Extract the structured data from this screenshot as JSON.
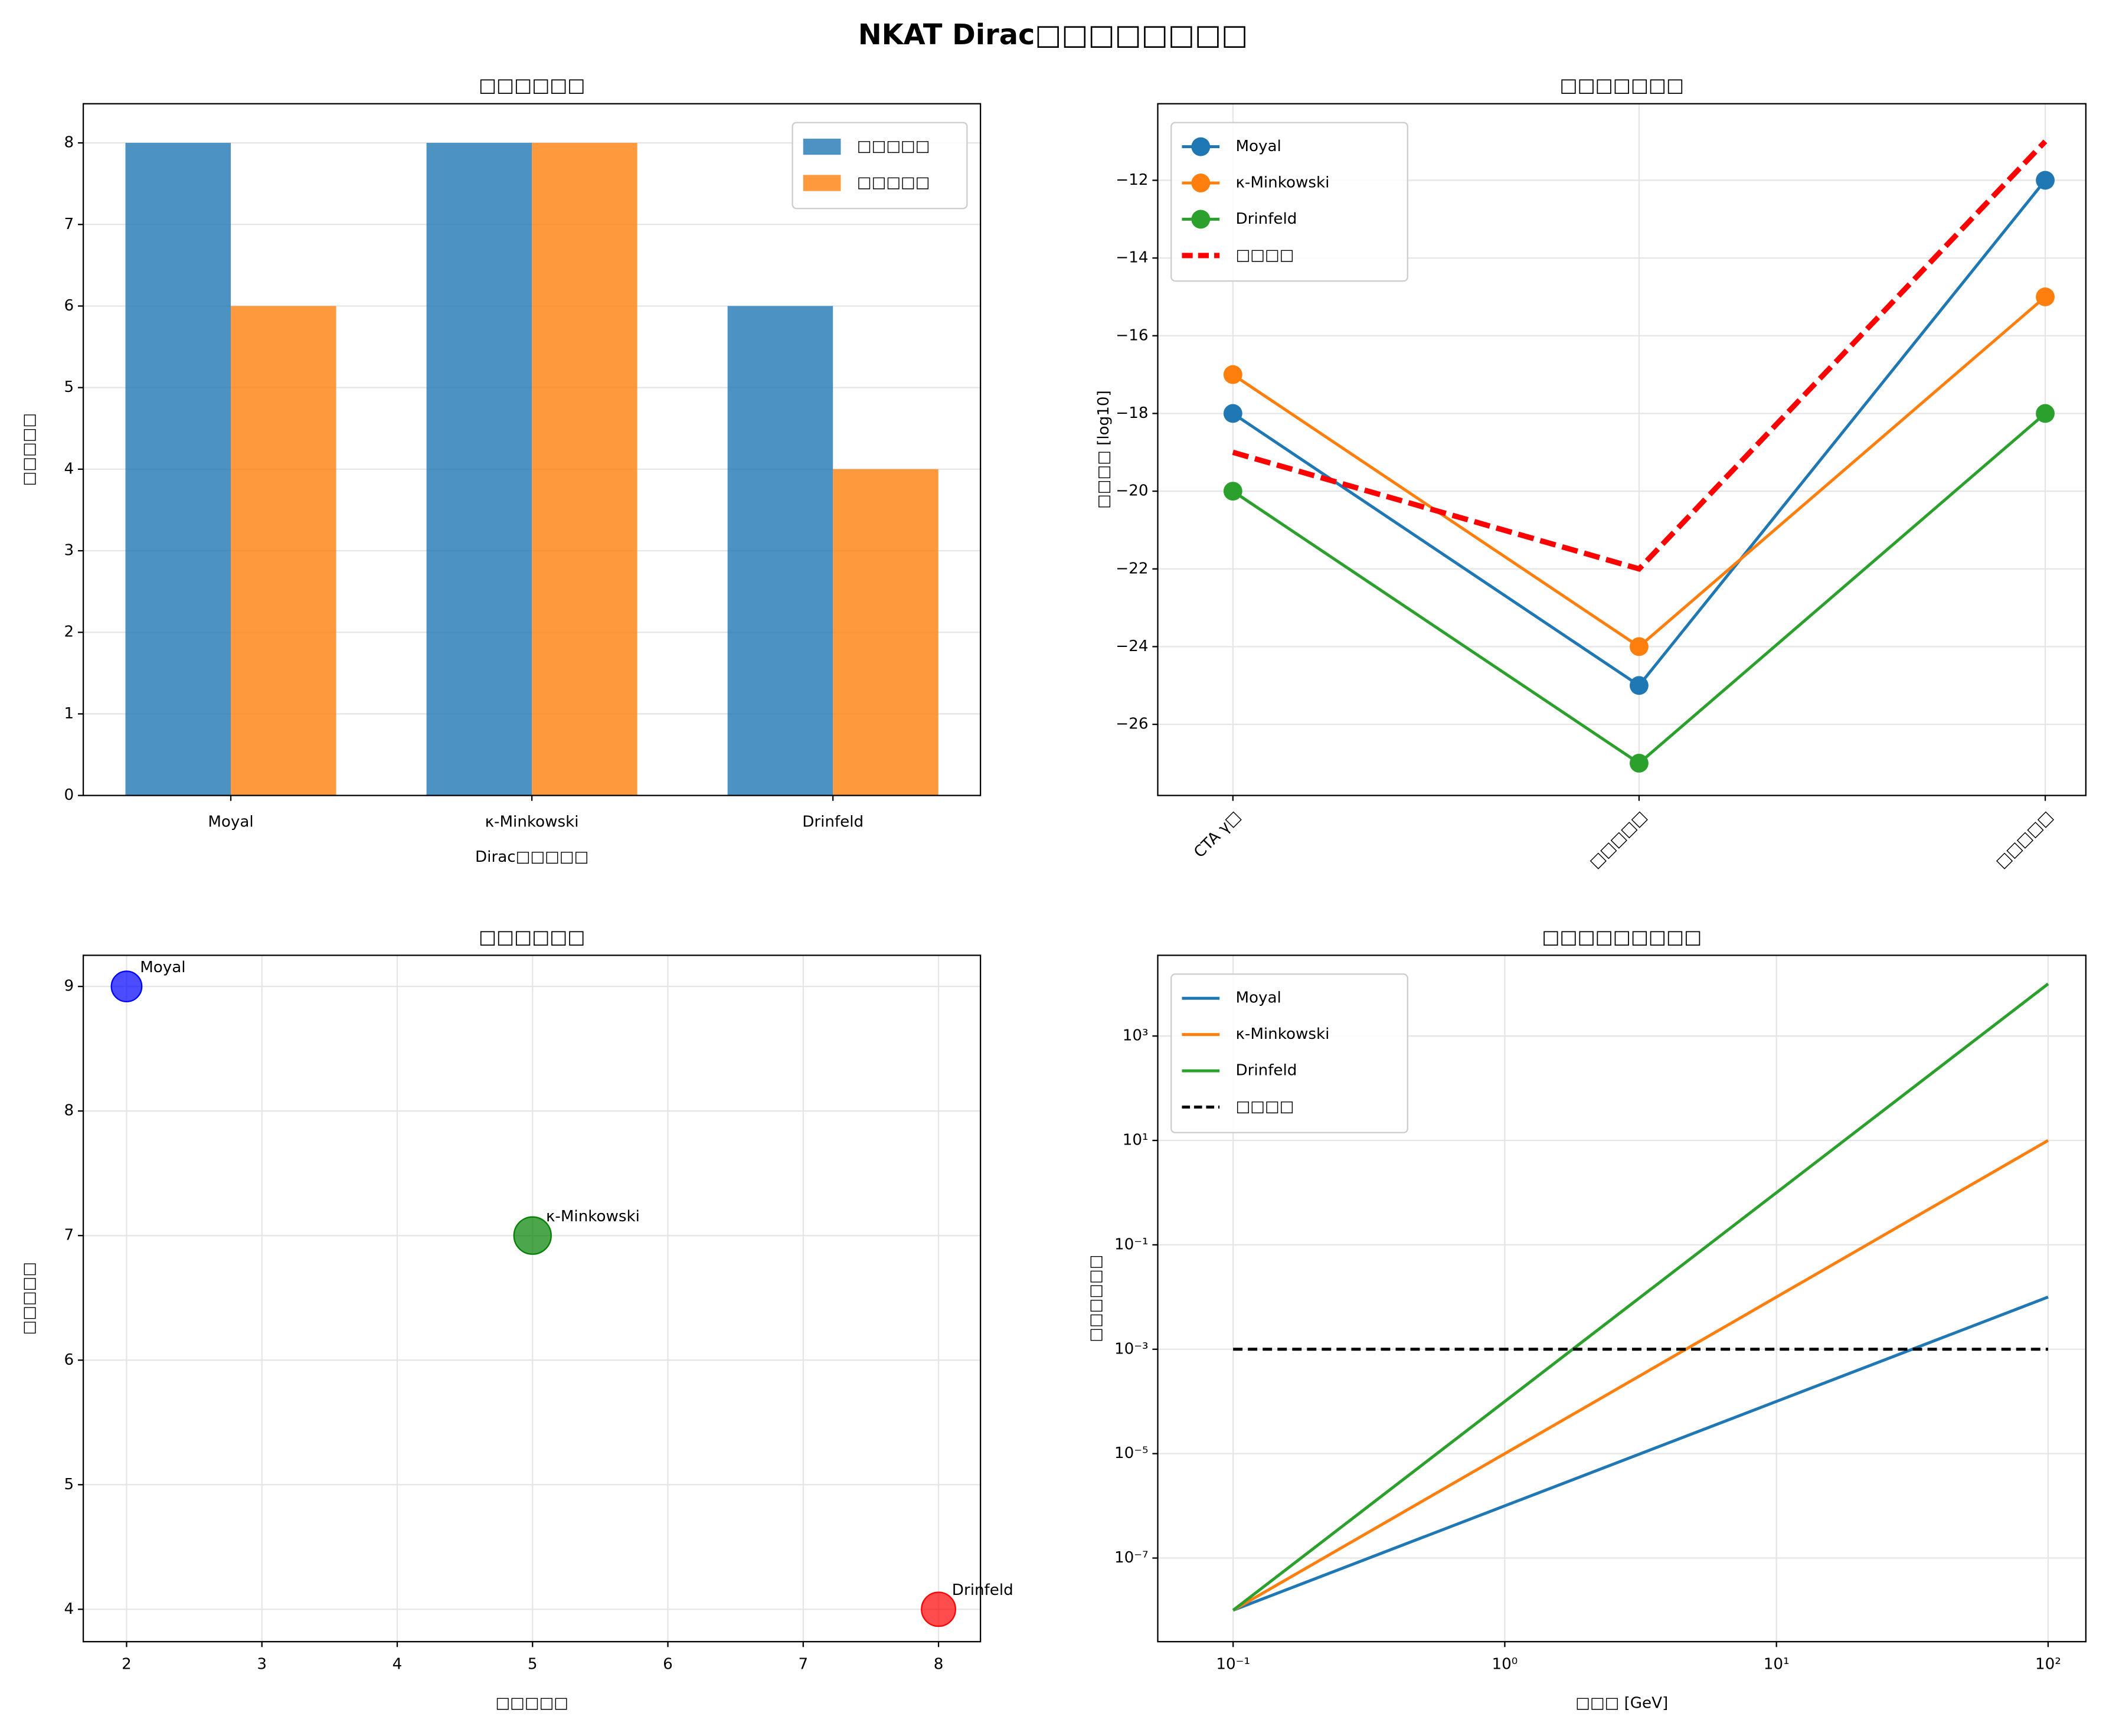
{
  "title": "NKAT Dirac□□□□□□□□",
  "chart_data": [
    {
      "type": "bar",
      "title": "□□□□□□",
      "xlabel": "Dirac□□□□□",
      "ylabel": "□□□□□",
      "categories": [
        "Moyal",
        "κ-Minkowski",
        "Drinfeld"
      ],
      "series": [
        {
          "name": "□□□□□",
          "color": "#1f77b4",
          "values": [
            8,
            8,
            6
          ]
        },
        {
          "name": "□□□□□",
          "color": "#ff7f0e",
          "values": [
            6,
            8,
            4
          ]
        }
      ],
      "ylim": [
        0,
        8.48
      ],
      "yticks": [
        0,
        1,
        2,
        3,
        4,
        5,
        6,
        7,
        8
      ],
      "grid": true,
      "legend": "upper right"
    },
    {
      "type": "line",
      "title": "□□□□□□□",
      "ylabel": "□□□□ [log10]",
      "categories": [
        "CTA γ□",
        "□□□□□",
        "□□□□□"
      ],
      "series": [
        {
          "name": "Moyal",
          "color": "#1f77b4",
          "marker": "o",
          "values": [
            -18,
            -25,
            -12
          ]
        },
        {
          "name": "κ-Minkowski",
          "color": "#ff7f0e",
          "marker": "o",
          "values": [
            -17,
            -24,
            -15
          ]
        },
        {
          "name": "Drinfeld",
          "color": "#2ca02c",
          "marker": "o",
          "values": [
            -20,
            -27,
            -18
          ]
        },
        {
          "name": "□□□□",
          "color": "#ff0000",
          "linestyle": "dashed",
          "values": [
            -19,
            -22,
            -11
          ]
        }
      ],
      "ylim": [
        -27.83,
        -10.03
      ],
      "yticks": [
        {
          "value": -26,
          "label": "−26"
        },
        {
          "value": -24,
          "label": "−24"
        },
        {
          "value": -22,
          "label": "−22"
        },
        {
          "value": -20,
          "label": "−20"
        },
        {
          "value": -18,
          "label": "−18"
        },
        {
          "value": -16,
          "label": "−16"
        },
        {
          "value": -14,
          "label": "−14"
        },
        {
          "value": -12,
          "label": "−12"
        }
      ],
      "grid": true,
      "legend": "upper left"
    },
    {
      "type": "scatter",
      "title": "□□□□□□",
      "xlabel": "□□□□□",
      "ylabel": "□□□□□",
      "x": [
        2,
        5,
        8
      ],
      "values": [
        9,
        7,
        4
      ],
      "sizes": [
        200,
        300,
        250
      ],
      "labels": [
        "Moyal",
        "κ-Minkowski",
        "Drinfeld"
      ],
      "colors": [
        "#0000ff",
        "#008000",
        "#ff0000"
      ],
      "xlim": [
        1.68,
        8.31
      ],
      "xticks": [
        2,
        3,
        4,
        5,
        6,
        7,
        8
      ],
      "ylim": [
        3.74,
        9.25
      ],
      "yticks": [
        4,
        5,
        6,
        7,
        8,
        9
      ],
      "grid": true
    },
    {
      "type": "line",
      "title": "□□□□□□□□□",
      "xlabel": "□□□ [GeV]",
      "ylabel": "□□□□□□",
      "x": [
        0.1,
        1,
        10,
        100
      ],
      "xscale": "log",
      "yscale": "log",
      "series": [
        {
          "name": "Moyal",
          "color": "#1f77b4",
          "values": [
            1e-08,
            1e-06,
            0.0001,
            0.01
          ]
        },
        {
          "name": "κ-Minkowski",
          "color": "#ff7f0e",
          "values": [
            1e-08,
            1e-05,
            0.01,
            10
          ]
        },
        {
          "name": "Drinfeld",
          "color": "#2ca02c",
          "values": [
            1e-08,
            0.0001,
            1,
            10000
          ]
        },
        {
          "name": "□□□□",
          "color": "#000000",
          "linestyle": "dashed",
          "values": [
            0.001,
            0.001,
            0.001,
            0.001
          ]
        }
      ],
      "xlim": [
        0.0528,
        137.7
      ],
      "ylim": [
        2.5e-09,
        35200
      ],
      "xticks": [
        {
          "value": 0.1,
          "label": "10⁻¹"
        },
        {
          "value": 1,
          "label": "10⁰"
        },
        {
          "value": 10,
          "label": "10¹"
        },
        {
          "value": 100,
          "label": "10²"
        }
      ],
      "yticks": [
        {
          "value": 1e-07,
          "label": "10⁻⁷"
        },
        {
          "value": 1e-05,
          "label": "10⁻⁵"
        },
        {
          "value": 0.001,
          "label": "10⁻³"
        },
        {
          "value": 0.1,
          "label": "10⁻¹"
        },
        {
          "value": 10,
          "label": "10¹"
        },
        {
          "value": 1000,
          "label": "10³"
        }
      ],
      "grid": true,
      "legend": "upper left"
    }
  ]
}
